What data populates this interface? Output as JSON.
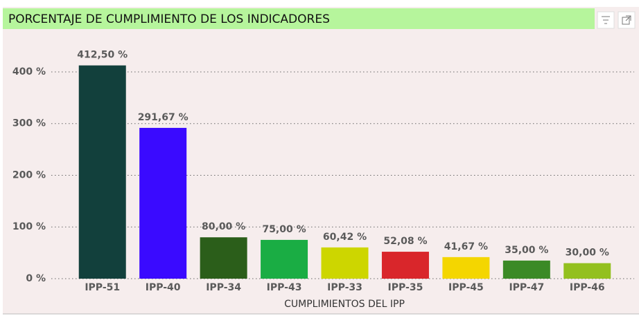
{
  "chart_data": {
    "type": "bar",
    "title": "PORCENTAJE DE CUMPLIMIENTO DE LOS INDICADORES",
    "x_label": "CUMPLIMIENTOS DEL IPP",
    "categories": [
      "IPP-51",
      "IPP-40",
      "IPP-34",
      "IPP-43",
      "IPP-33",
      "IPP-35",
      "IPP-45",
      "IPP-47",
      "IPP-46"
    ],
    "values": [
      412.5,
      291.67,
      80,
      75,
      60.42,
      52.08,
      41.67,
      35,
      30
    ],
    "value_labels": [
      "412,50 %",
      "291,67 %",
      "80,00 %",
      "75,00 %",
      "60,42 %",
      "52,08 %",
      "41,67 %",
      "35,00 %",
      "30,00 %"
    ],
    "colors": [
      "#12403c",
      "#3a0aff",
      "#2b5e1a",
      "#1aad44",
      "#cdd600",
      "#d9262b",
      "#f4d600",
      "#3b8a26",
      "#93c01f"
    ],
    "ylim": [
      0,
      420
    ],
    "yticks": [
      {
        "value": 0,
        "label": "0 %"
      },
      {
        "value": 100,
        "label": "100 %"
      },
      {
        "value": 200,
        "label": "200 %"
      },
      {
        "value": 300,
        "label": "300 %"
      },
      {
        "value": 400,
        "label": "400 %"
      }
    ],
    "grid": true
  }
}
